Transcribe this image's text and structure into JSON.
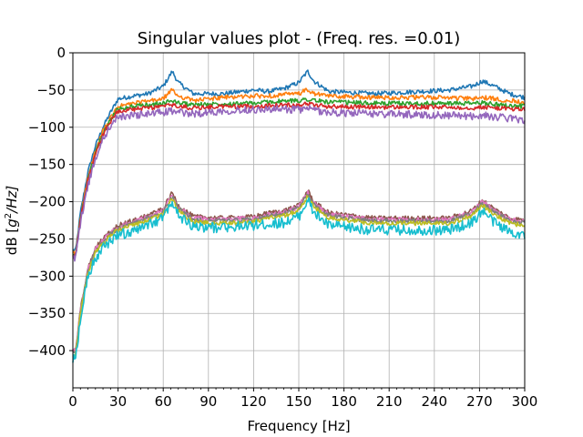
{
  "chart_data": {
    "type": "line",
    "title": "Singular values plot - (Freq. res. =0.01)",
    "xlabel": "Frequency [Hz]",
    "ylabel_prefix": "dB [",
    "ylabel_var": "g",
    "ylabel_sup": "2",
    "ylabel_suffix": "/Hz]",
    "xlim": [
      0,
      300
    ],
    "ylim": [
      -450,
      0
    ],
    "xticks": [
      0,
      30,
      60,
      90,
      120,
      150,
      180,
      210,
      240,
      270,
      300
    ],
    "yticks": [
      0,
      -50,
      -100,
      -150,
      -200,
      -250,
      -300,
      -350,
      -400
    ],
    "xtick_labels": [
      "0",
      "30",
      "60",
      "90",
      "120",
      "150",
      "180",
      "210",
      "240",
      "270",
      "300"
    ],
    "ytick_labels": [
      "0",
      "−50",
      "−100",
      "−150",
      "−200",
      "−250",
      "−300",
      "−350",
      "−400"
    ],
    "grid": true,
    "legend": "none",
    "x": [
      0,
      2,
      5,
      10,
      15,
      20,
      25,
      30,
      40,
      50,
      60,
      63,
      66,
      70,
      80,
      100,
      120,
      130,
      140,
      150,
      153,
      156,
      160,
      170,
      200,
      230,
      250,
      265,
      272,
      280,
      290,
      300
    ],
    "series": [
      {
        "color": "#1f77b4",
        "noise": 3,
        "values": [
          -265,
          -265,
          -215,
          -160,
          -125,
          -100,
          -80,
          -62,
          -58,
          -55,
          -45,
          -35,
          -25,
          -40,
          -55,
          -55,
          -50,
          -52,
          -48,
          -40,
          -32,
          -25,
          -38,
          -52,
          -55,
          -52,
          -50,
          -45,
          -38,
          -45,
          -55,
          -60
        ]
      },
      {
        "color": "#ff7f0e",
        "noise": 3,
        "values": [
          -270,
          -268,
          -220,
          -168,
          -132,
          -105,
          -88,
          -72,
          -68,
          -65,
          -62,
          -55,
          -50,
          -58,
          -64,
          -60,
          -58,
          -58,
          -56,
          -55,
          -52,
          -50,
          -55,
          -58,
          -60,
          -60,
          -60,
          -62,
          -60,
          -62,
          -64,
          -66
        ]
      },
      {
        "color": "#2ca02c",
        "noise": 3,
        "values": [
          -272,
          -270,
          -222,
          -170,
          -135,
          -108,
          -90,
          -75,
          -72,
          -70,
          -68,
          -66,
          -64,
          -67,
          -70,
          -68,
          -68,
          -66,
          -65,
          -64,
          -63,
          -62,
          -64,
          -66,
          -68,
          -68,
          -68,
          -68,
          -67,
          -69,
          -71,
          -72
        ]
      },
      {
        "color": "#d62728",
        "noise": 3,
        "values": [
          -274,
          -272,
          -224,
          -172,
          -137,
          -110,
          -92,
          -78,
          -76,
          -74,
          -72,
          -71,
          -70,
          -72,
          -74,
          -72,
          -72,
          -71,
          -70,
          -70,
          -69,
          -68,
          -70,
          -72,
          -73,
          -73,
          -73,
          -74,
          -73,
          -74,
          -75,
          -76
        ]
      },
      {
        "color": "#9467bd",
        "noise": 5,
        "values": [
          -276,
          -274,
          -228,
          -178,
          -142,
          -116,
          -98,
          -86,
          -84,
          -82,
          -80,
          -79,
          -78,
          -80,
          -82,
          -78,
          -76,
          -76,
          -76,
          -76,
          -76,
          -75,
          -77,
          -80,
          -82,
          -83,
          -84,
          -85,
          -84,
          -86,
          -88,
          -90
        ]
      },
      {
        "color": "#8c564b",
        "noise": 3,
        "values": [
          -400,
          -398,
          -345,
          -290,
          -262,
          -250,
          -240,
          -232,
          -225,
          -218,
          -210,
          -198,
          -188,
          -205,
          -220,
          -222,
          -220,
          -215,
          -212,
          -205,
          -195,
          -185,
          -200,
          -215,
          -222,
          -222,
          -222,
          -212,
          -198,
          -210,
          -222,
          -225
        ]
      },
      {
        "color": "#e377c2",
        "noise": 3,
        "values": [
          -402,
          -400,
          -347,
          -292,
          -264,
          -252,
          -242,
          -234,
          -227,
          -220,
          -212,
          -200,
          -191,
          -207,
          -222,
          -224,
          -222,
          -217,
          -214,
          -207,
          -197,
          -188,
          -202,
          -217,
          -224,
          -224,
          -224,
          -214,
          -200,
          -212,
          -224,
          -227
        ]
      },
      {
        "color": "#7f7f7f",
        "noise": 3,
        "values": [
          -404,
          -402,
          -349,
          -294,
          -266,
          -254,
          -244,
          -236,
          -229,
          -222,
          -214,
          -202,
          -193,
          -209,
          -224,
          -226,
          -224,
          -219,
          -216,
          -209,
          -199,
          -190,
          -204,
          -219,
          -226,
          -226,
          -226,
          -216,
          -202,
          -214,
          -226,
          -229
        ]
      },
      {
        "color": "#bcbd22",
        "noise": 3,
        "values": [
          -406,
          -404,
          -351,
          -296,
          -268,
          -256,
          -246,
          -238,
          -232,
          -225,
          -217,
          -205,
          -196,
          -212,
          -227,
          -229,
          -227,
          -222,
          -219,
          -212,
          -202,
          -193,
          -207,
          -222,
          -229,
          -229,
          -229,
          -219,
          -205,
          -217,
          -229,
          -232
        ]
      },
      {
        "color": "#17becf",
        "noise": 7,
        "values": [
          -410,
          -410,
          -355,
          -300,
          -275,
          -262,
          -252,
          -245,
          -240,
          -232,
          -222,
          -210,
          -200,
          -218,
          -235,
          -235,
          -232,
          -230,
          -228,
          -220,
          -208,
          -198,
          -215,
          -232,
          -238,
          -238,
          -238,
          -228,
          -212,
          -228,
          -240,
          -245
        ]
      }
    ]
  }
}
